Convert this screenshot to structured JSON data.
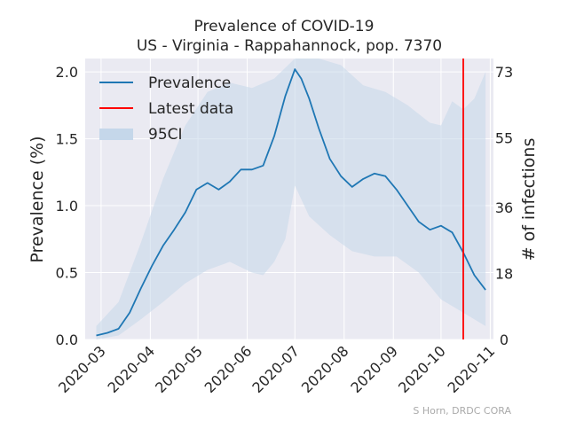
{
  "chart_data": {
    "type": "line",
    "title": "Prevalence of COVID-19",
    "subtitle": "US - Virginia - Rappahannock, pop. 7370",
    "xlabel": "",
    "ylabel": "Prevalence (%)",
    "y2label": "# of infections",
    "ylim": [
      0,
      2.1
    ],
    "y_ticks": [
      0.0,
      0.5,
      1.0,
      1.5,
      2.0
    ],
    "y_tick_labels": [
      "0.0",
      "0.5",
      "1.0",
      "1.5",
      "2.0"
    ],
    "y2_ticks": [
      0,
      18,
      36,
      55,
      73
    ],
    "y2_tick_labels": [
      "0",
      "18",
      "36",
      "55",
      "73"
    ],
    "x_range": [
      "2020-02-20",
      "2020-11-03"
    ],
    "x_ticks": [
      "2020-03-01",
      "2020-04-01",
      "2020-05-01",
      "2020-06-01",
      "2020-07-01",
      "2020-08-01",
      "2020-09-01",
      "2020-10-01",
      "2020-11-01"
    ],
    "x_tick_labels": [
      "2020-03",
      "2020-04",
      "2020-05",
      "2020-06",
      "2020-07",
      "2020-08",
      "2020-09",
      "2020-10",
      "2020-11"
    ],
    "grid": true,
    "legend": {
      "position": "upper-left",
      "entries": [
        {
          "label": "Prevalence",
          "color": "#1f77b4",
          "kind": "line"
        },
        {
          "label": "Latest data",
          "color": "#ff0000",
          "kind": "line"
        },
        {
          "label": "95CI",
          "color": "#c5d7ea",
          "kind": "patch"
        }
      ]
    },
    "latest_data_date": "2020-10-15",
    "series": [
      {
        "name": "Prevalence",
        "color": "#1f77b4",
        "points": [
          [
            "2020-02-27",
            0.03
          ],
          [
            "2020-03-05",
            0.05
          ],
          [
            "2020-03-12",
            0.08
          ],
          [
            "2020-03-19",
            0.2
          ],
          [
            "2020-03-26",
            0.38
          ],
          [
            "2020-04-02",
            0.55
          ],
          [
            "2020-04-09",
            0.7
          ],
          [
            "2020-04-16",
            0.82
          ],
          [
            "2020-04-23",
            0.95
          ],
          [
            "2020-04-30",
            1.12
          ],
          [
            "2020-05-07",
            1.17
          ],
          [
            "2020-05-14",
            1.12
          ],
          [
            "2020-05-21",
            1.18
          ],
          [
            "2020-05-28",
            1.27
          ],
          [
            "2020-06-04",
            1.27
          ],
          [
            "2020-06-11",
            1.3
          ],
          [
            "2020-06-18",
            1.52
          ],
          [
            "2020-06-25",
            1.82
          ],
          [
            "2020-07-01",
            2.02
          ],
          [
            "2020-07-05",
            1.95
          ],
          [
            "2020-07-10",
            1.8
          ],
          [
            "2020-07-16",
            1.58
          ],
          [
            "2020-07-23",
            1.35
          ],
          [
            "2020-07-30",
            1.22
          ],
          [
            "2020-08-06",
            1.14
          ],
          [
            "2020-08-13",
            1.2
          ],
          [
            "2020-08-20",
            1.24
          ],
          [
            "2020-08-27",
            1.22
          ],
          [
            "2020-09-03",
            1.12
          ],
          [
            "2020-09-10",
            1.0
          ],
          [
            "2020-09-17",
            0.88
          ],
          [
            "2020-09-24",
            0.82
          ],
          [
            "2020-10-01",
            0.85
          ],
          [
            "2020-10-08",
            0.8
          ],
          [
            "2020-10-15",
            0.65
          ],
          [
            "2020-10-22",
            0.48
          ],
          [
            "2020-10-29",
            0.37
          ]
        ]
      },
      {
        "name": "95CI",
        "color": "#c5d7ea",
        "lower": [
          [
            "2020-02-27",
            0.0
          ],
          [
            "2020-03-12",
            0.03
          ],
          [
            "2020-03-26",
            0.15
          ],
          [
            "2020-04-09",
            0.28
          ],
          [
            "2020-04-23",
            0.42
          ],
          [
            "2020-05-07",
            0.52
          ],
          [
            "2020-05-21",
            0.58
          ],
          [
            "2020-06-04",
            0.5
          ],
          [
            "2020-06-11",
            0.48
          ],
          [
            "2020-06-18",
            0.58
          ],
          [
            "2020-06-25",
            0.75
          ],
          [
            "2020-07-01",
            1.15
          ],
          [
            "2020-07-10",
            0.92
          ],
          [
            "2020-07-23",
            0.78
          ],
          [
            "2020-08-06",
            0.66
          ],
          [
            "2020-08-20",
            0.62
          ],
          [
            "2020-09-03",
            0.62
          ],
          [
            "2020-09-17",
            0.5
          ],
          [
            "2020-10-01",
            0.3
          ],
          [
            "2020-10-15",
            0.2
          ],
          [
            "2020-10-29",
            0.1
          ]
        ],
        "upper": [
          [
            "2020-02-27",
            0.1
          ],
          [
            "2020-03-12",
            0.28
          ],
          [
            "2020-03-26",
            0.72
          ],
          [
            "2020-04-09",
            1.2
          ],
          [
            "2020-04-23",
            1.6
          ],
          [
            "2020-05-07",
            1.85
          ],
          [
            "2020-05-21",
            1.92
          ],
          [
            "2020-06-04",
            1.88
          ],
          [
            "2020-06-18",
            1.95
          ],
          [
            "2020-07-01",
            2.1
          ],
          [
            "2020-07-16",
            2.1
          ],
          [
            "2020-07-30",
            2.05
          ],
          [
            "2020-08-13",
            1.9
          ],
          [
            "2020-08-27",
            1.85
          ],
          [
            "2020-09-10",
            1.75
          ],
          [
            "2020-09-24",
            1.62
          ],
          [
            "2020-10-01",
            1.6
          ],
          [
            "2020-10-08",
            1.78
          ],
          [
            "2020-10-15",
            1.72
          ],
          [
            "2020-10-22",
            1.8
          ],
          [
            "2020-10-29",
            2.0
          ]
        ]
      }
    ]
  },
  "credit": "S Horn, DRDC CORA"
}
